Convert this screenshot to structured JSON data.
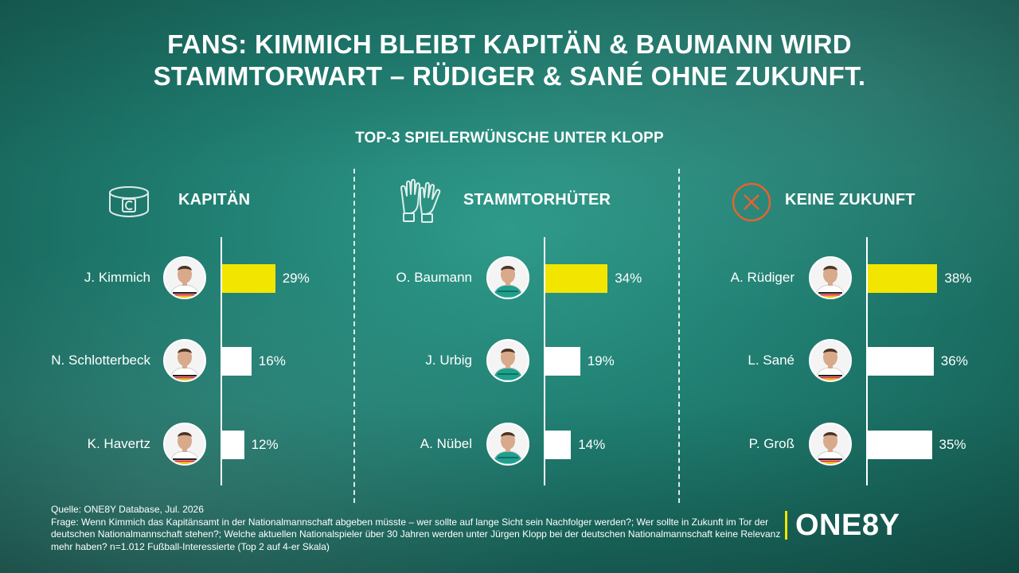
{
  "headline": {
    "line1": "FANS: KIMMICH BLEIBT KAPITÄN & BAUMANN WIRD",
    "line2": "STAMMTORWART – RÜDIGER & SANÉ OHNE ZUKUNFT."
  },
  "subheadline": "TOP-3 SPIELERWÜNSCHE UNTER KLOPP",
  "colors": {
    "highlight_bar": "#f2e600",
    "other_bar": "#ffffff",
    "icon_orange": "#e8622c",
    "background": "#1f7d70"
  },
  "chart_data": [
    {
      "type": "bar",
      "orientation": "horizontal",
      "title": "KAPITÄN",
      "icon": "captain-armband-icon",
      "categories": [
        "J. Kimmich",
        "N. Schlotterbeck",
        "K. Havertz"
      ],
      "values": [
        29,
        16,
        12
      ],
      "labels": [
        "29%",
        "16%",
        "12%"
      ],
      "unit": "%",
      "highlight_index": 0
    },
    {
      "type": "bar",
      "orientation": "horizontal",
      "title": "STAMMTORHÜTER",
      "icon": "goalkeeper-gloves-icon",
      "categories": [
        "O. Baumann",
        "J. Urbig",
        "A. Nübel"
      ],
      "values": [
        34,
        19,
        14
      ],
      "labels": [
        "34%",
        "19%",
        "14%"
      ],
      "unit": "%",
      "highlight_index": 0
    },
    {
      "type": "bar",
      "orientation": "horizontal",
      "title": "KEINE ZUKUNFT",
      "icon": "x-circle-icon",
      "categories": [
        "A. Rüdiger",
        "L. Sané",
        "P. Groß"
      ],
      "values": [
        38,
        36,
        35
      ],
      "labels": [
        "38%",
        "36%",
        "35%"
      ],
      "unit": "%",
      "highlight_index": 0
    }
  ],
  "footer": {
    "source_line": "Quelle: ONE8Y Database, Jul. 2026",
    "question_text": "Frage: Wenn Kimmich das Kapitänsamt in der Nationalmannschaft abgeben müsste – wer sollte auf lange Sicht sein Nachfolger werden?; Wer sollte in Zukunft im Tor der deutschen Nationalmannschaft stehen?; Welche aktuellen Nationalspieler über 30 Jahren werden unter Jürgen Klopp bei der deutschen Nationalmannschaft keine Relevanz mehr haben? n=1.012 Fußball-Interessierte (Top 2 auf 4-er Skala)"
  },
  "logo": {
    "text": "ONE8Y"
  }
}
